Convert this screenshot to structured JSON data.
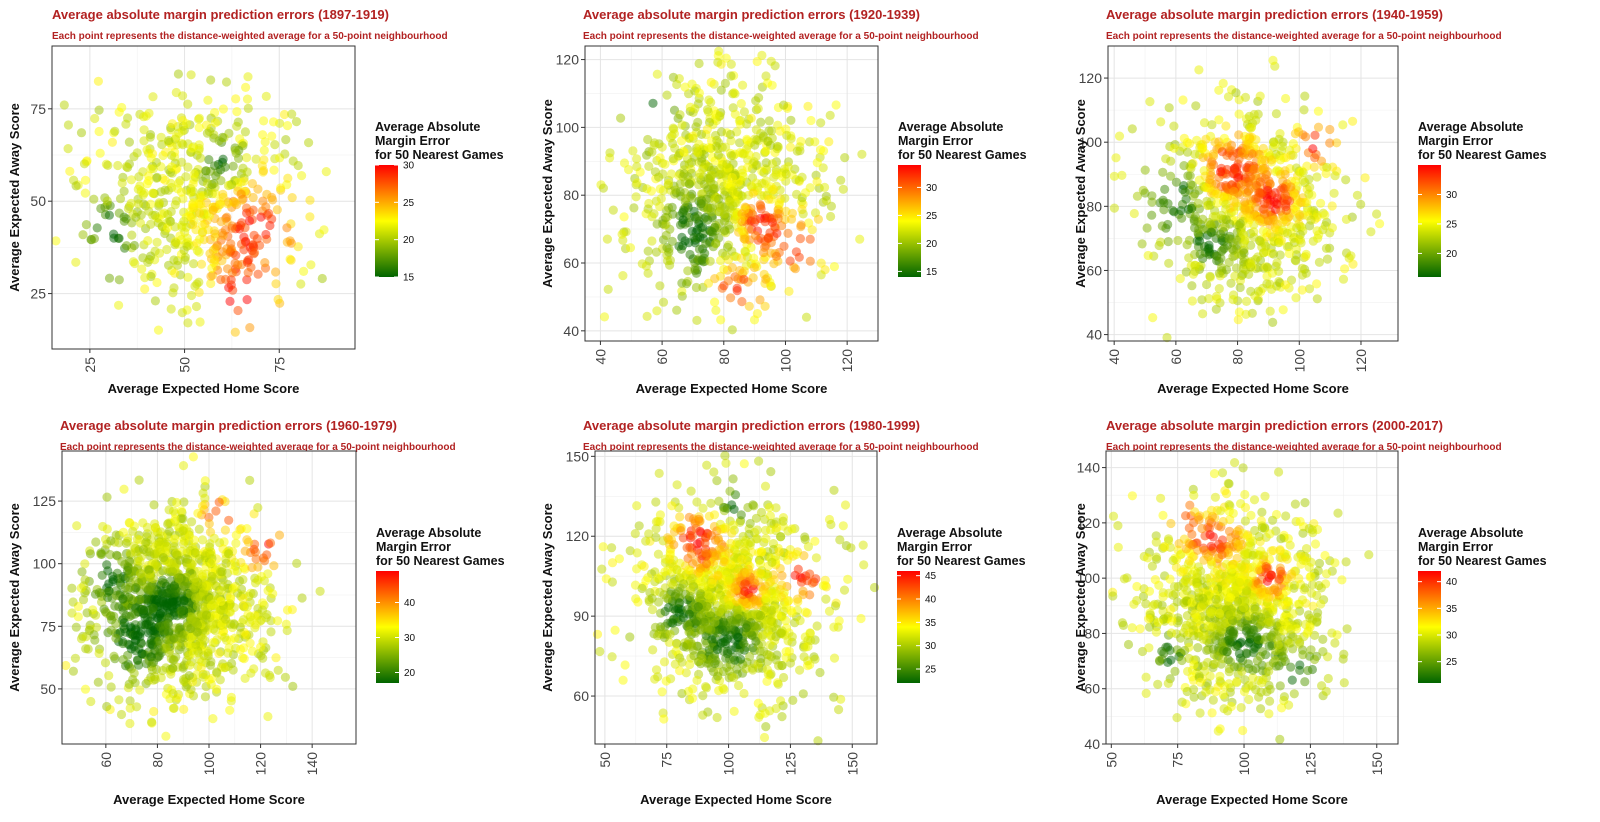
{
  "chart_data": [
    {
      "type": "scatter",
      "title": "Average absolute margin prediction errors (1897-1919)",
      "subtitle": "Each point represents the distance-weighted average for a 50-point neighbourhood",
      "xlabel": "Average Expected Home Score",
      "ylabel": "Average Expected Away Score",
      "xlim": [
        15,
        95
      ],
      "ylim": [
        10,
        92
      ],
      "xticks": [
        25,
        50,
        75
      ],
      "yticks": [
        25,
        50,
        75
      ],
      "legend": {
        "title": [
          "Average Absolute",
          "Margin Error",
          "for 50 Nearest Games"
        ],
        "ticks": [
          15,
          20,
          25,
          30
        ],
        "range": [
          15,
          30
        ],
        "colors": [
          "#006400",
          "#ffff00",
          "#ff0000"
        ]
      },
      "cluster": {
        "center": [
          52,
          50
        ],
        "spread": [
          14,
          15
        ],
        "count": 620,
        "seed": 11
      },
      "hotspots": [
        [
          68,
          42,
          10,
          12
        ],
        [
          65,
          24,
          8,
          8
        ],
        [
          36,
          82,
          5,
          6
        ]
      ],
      "coolspots": [
        [
          30,
          40,
          6,
          10
        ],
        [
          60,
          60,
          5,
          6
        ]
      ]
    },
    {
      "type": "scatter",
      "title": "Average absolute margin prediction errors (1920-1939)",
      "subtitle": "Each point represents the distance-weighted average for a 50-point neighbourhood",
      "xlabel": "Average Expected Home Score",
      "ylabel": "Average Expected Away Score",
      "xlim": [
        35,
        130
      ],
      "ylim": [
        37,
        124
      ],
      "xticks": [
        40,
        60,
        80,
        100,
        120
      ],
      "yticks": [
        40,
        60,
        80,
        100,
        120
      ],
      "legend": {
        "title": [
          "Average Absolute",
          "Margin Error",
          "for 50 Nearest Games"
        ],
        "ticks": [
          15,
          20,
          25,
          30
        ],
        "range": [
          14,
          34
        ],
        "colors": [
          "#006400",
          "#ffff00",
          "#ff0000"
        ]
      },
      "cluster": {
        "center": [
          80,
          80
        ],
        "spread": [
          15,
          16
        ],
        "count": 820,
        "seed": 23
      },
      "hotspots": [
        [
          104,
          64,
          10,
          7
        ],
        [
          84,
          52,
          8,
          6
        ],
        [
          92,
          72,
          6,
          6
        ]
      ],
      "coolspots": [
        [
          70,
          68,
          8,
          12
        ],
        [
          55,
          105,
          8,
          8
        ]
      ]
    },
    {
      "type": "scatter",
      "title": "Average absolute margin prediction errors (1940-1959)",
      "subtitle": "Each point represents the distance-weighted average for a 50-point neighbourhood",
      "xlabel": "Average Expected Home Score",
      "ylabel": "Average Expected Away Score",
      "xlim": [
        38,
        132
      ],
      "ylim": [
        38,
        130
      ],
      "xticks": [
        40,
        60,
        80,
        100,
        120
      ],
      "yticks": [
        40,
        60,
        80,
        100,
        120
      ],
      "legend": {
        "title": [
          "Average Absolute",
          "Margin Error",
          "for 50 Nearest Games"
        ],
        "ticks": [
          20,
          25,
          30
        ],
        "range": [
          16,
          35
        ],
        "colors": [
          "#006400",
          "#ffff00",
          "#ff0000"
        ]
      },
      "cluster": {
        "center": [
          84,
          80
        ],
        "spread": [
          15,
          15
        ],
        "count": 820,
        "seed": 37
      },
      "hotspots": [
        [
          78,
          92,
          9,
          9
        ],
        [
          92,
          82,
          7,
          7
        ],
        [
          105,
          100,
          6,
          6
        ]
      ],
      "coolspots": [
        [
          60,
          82,
          8,
          10
        ],
        [
          72,
          68,
          8,
          6
        ]
      ]
    },
    {
      "type": "scatter",
      "title": "Average absolute margin prediction errors (1960-1979)",
      "subtitle": "Each point represents the distance-weighted average for a 50-point neighbourhood",
      "xlabel": "Average Expected Home Score",
      "ylabel": "Average Expected Away Score",
      "xlim": [
        43,
        157
      ],
      "ylim": [
        28,
        145
      ],
      "xticks": [
        60,
        80,
        100,
        120,
        140
      ],
      "yticks": [
        50,
        75,
        100,
        125
      ],
      "legend": {
        "title": [
          "Average Absolute",
          "Margin Error",
          "for 50 Nearest Games"
        ],
        "ticks": [
          20,
          30,
          40
        ],
        "range": [
          17,
          49
        ],
        "colors": [
          "#006400",
          "#ffff00",
          "#ff0000"
        ]
      },
      "cluster": {
        "center": [
          88,
          84
        ],
        "spread": [
          17,
          18
        ],
        "count": 1200,
        "seed": 53
      },
      "hotspots": [
        [
          122,
          106,
          8,
          8
        ],
        [
          104,
          120,
          6,
          6
        ]
      ],
      "coolspots": [
        [
          72,
          70,
          12,
          14
        ],
        [
          62,
          95,
          8,
          10
        ],
        [
          85,
          85,
          10,
          10
        ]
      ]
    },
    {
      "type": "scatter",
      "title": "Average absolute margin prediction errors (1980-1999)",
      "subtitle": "Each point represents the distance-weighted average for a 50-point neighbourhood",
      "xlabel": "Average Expected Home Score",
      "ylabel": "Average Expected Away Score",
      "xlim": [
        46,
        160
      ],
      "ylim": [
        42,
        152
      ],
      "xticks": [
        50,
        75,
        100,
        125,
        150
      ],
      "yticks": [
        60,
        90,
        120,
        150
      ],
      "legend": {
        "title": [
          "Average Absolute",
          "Margin Error",
          "for 50 Nearest Games"
        ],
        "ticks": [
          25,
          30,
          35,
          40,
          45
        ],
        "range": [
          22,
          46
        ],
        "colors": [
          "#006400",
          "#ffff00",
          "#ff0000"
        ]
      },
      "cluster": {
        "center": [
          100,
          96
        ],
        "spread": [
          18,
          18
        ],
        "count": 1100,
        "seed": 71
      },
      "hotspots": [
        [
          88,
          118,
          10,
          10
        ],
        [
          130,
          104,
          8,
          7
        ],
        [
          108,
          100,
          6,
          6
        ]
      ],
      "coolspots": [
        [
          100,
          80,
          12,
          10
        ],
        [
          102,
          132,
          6,
          6
        ],
        [
          80,
          92,
          8,
          8
        ]
      ]
    },
    {
      "type": "scatter",
      "title": "Average absolute margin prediction errors (2000-2017)",
      "subtitle": "Each point represents the distance-weighted average for a 50-point neighbourhood",
      "xlabel": "Average Expected Home Score",
      "ylabel": "Average Expected Away Score",
      "xlim": [
        48,
        158
      ],
      "ylim": [
        40,
        146
      ],
      "xticks": [
        50,
        75,
        100,
        125,
        150
      ],
      "yticks": [
        40,
        60,
        80,
        100,
        120,
        140
      ],
      "legend": {
        "title": [
          "Average Absolute",
          "Margin Error",
          "for 50 Nearest Games"
        ],
        "ticks": [
          25,
          30,
          35,
          40
        ],
        "range": [
          21,
          42
        ],
        "colors": [
          "#006400",
          "#ffff00",
          "#ff0000"
        ]
      },
      "cluster": {
        "center": [
          96,
          92
        ],
        "spread": [
          17,
          18
        ],
        "count": 1050,
        "seed": 89
      },
      "hotspots": [
        [
          88,
          114,
          10,
          8
        ],
        [
          110,
          100,
          6,
          6
        ],
        [
          76,
          124,
          5,
          5
        ]
      ],
      "coolspots": [
        [
          100,
          76,
          10,
          8
        ],
        [
          120,
          66,
          8,
          8
        ],
        [
          72,
          72,
          5,
          6
        ]
      ]
    }
  ]
}
